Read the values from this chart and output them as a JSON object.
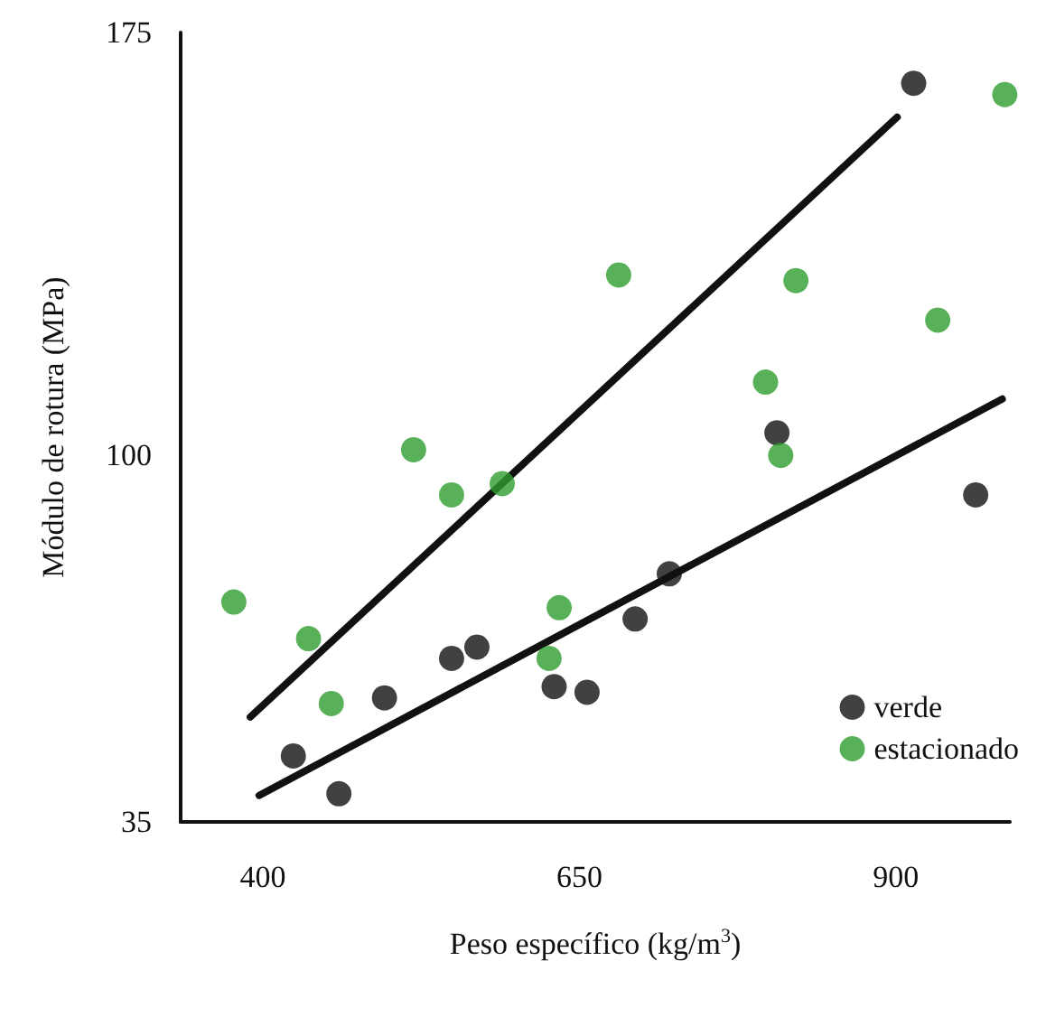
{
  "chart_data": {
    "type": "scatter",
    "xlabel": "Peso específico (kg/m$^{3}$)",
    "ylabel": "Módulo de rotura (MPa)",
    "xlim": [
      335,
      990
    ],
    "xticks": [
      400,
      650,
      900
    ],
    "ylim": [
      35,
      175
    ],
    "yticks": [
      35,
      100,
      175
    ],
    "grid": false,
    "legend": "bottom right",
    "series": [
      {
        "name": "verde",
        "color": "#111111",
        "marker": "circle",
        "x": [
          424,
          460,
          496,
          549,
          569,
          630,
          656,
          694,
          721,
          806,
          914,
          963
        ],
        "values": [
          46.7,
          40,
          57,
          64,
          66,
          59,
          58,
          71,
          79,
          104,
          166,
          93
        ]
      },
      {
        "name": "estacionado",
        "color": "#2e9e2e",
        "marker": "circle",
        "x": [
          377,
          436,
          454,
          519,
          549,
          589,
          626,
          634,
          681,
          797,
          809,
          821,
          933,
          986
        ],
        "values": [
          74,
          67.5,
          56,
          101,
          93,
          95,
          64,
          73,
          132,
          113,
          100,
          131,
          124,
          164
        ]
      },
      {
        "type": "line",
        "color": "#111111",
        "marker": "none",
        "x": [
          390,
          901
        ],
        "values": [
          53.6,
          160
        ]
      },
      {
        "type": "line",
        "color": "#111111",
        "marker": "none",
        "x": [
          397,
          984
        ],
        "values": [
          39.7,
          110
        ]
      }
    ]
  }
}
